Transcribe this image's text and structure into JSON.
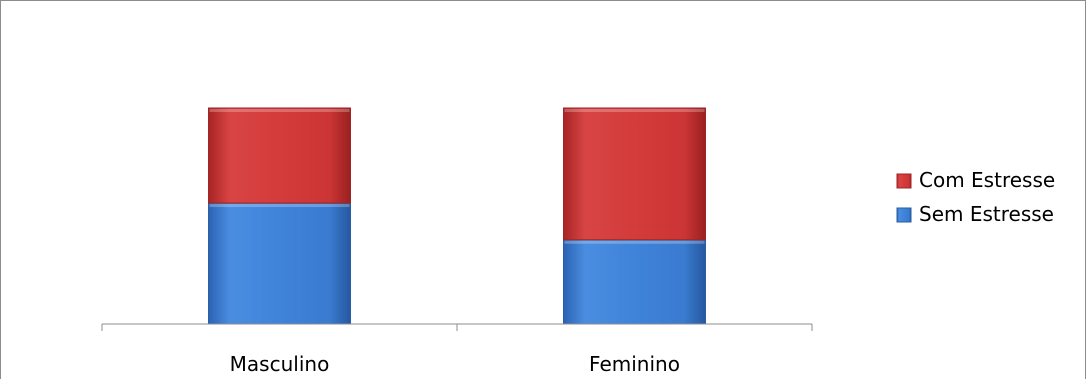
{
  "chart_data": {
    "type": "bar",
    "stacked": true,
    "categories": [
      "Masculino",
      "Feminino"
    ],
    "series": [
      {
        "name": "Sem Estresse",
        "values": [
          56,
          39
        ],
        "color": "#3c7fd6"
      },
      {
        "name": "Com Estresse",
        "values": [
          44,
          61
        ],
        "color": "#d23a3a"
      }
    ],
    "title": "",
    "xlabel": "",
    "ylabel": "",
    "ylim": [
      0,
      100
    ],
    "grid": false,
    "legend": "right"
  }
}
